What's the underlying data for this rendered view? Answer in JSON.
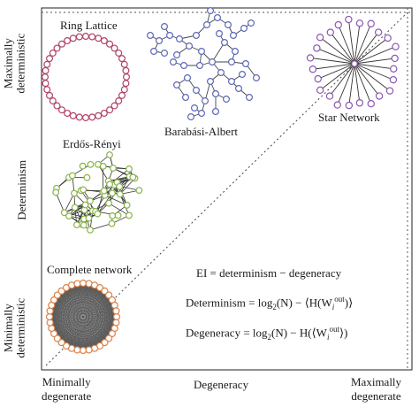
{
  "networks": {
    "ring": {
      "title": "Ring Lattice",
      "node_count": 40,
      "node_color": "#b0426b"
    },
    "barabasi": {
      "title": "Barabási-Albert",
      "node_color": "#5d68b8"
    },
    "star": {
      "title": "Star Network",
      "leaf_count": 24,
      "node_color": "#8a58b0"
    },
    "erdos": {
      "title": "Erdős-Rényi",
      "node_color": "#8ab34a"
    },
    "complete": {
      "title": "Complete network",
      "node_count": 36,
      "node_color": "#d9824a"
    }
  },
  "y_axis": {
    "top": [
      "Maximally",
      "deterministic"
    ],
    "middle": "Determinism",
    "bottom": [
      "Minimally",
      "deterministic"
    ]
  },
  "x_axis": {
    "left": [
      "Minimally",
      "degenerate"
    ],
    "middle": "Degeneracy",
    "right": [
      "Maximally",
      "degenerate"
    ]
  },
  "equations": {
    "ei": "EI = determinism − degeneracy",
    "determinism_lhs": "Determinism = log",
    "determinism_sub": "2",
    "determinism_mid": "(N) − ⟨H(W",
    "determinism_w_sub": "i",
    "determinism_w_sup": "out",
    "determinism_end": ")⟩",
    "degeneracy_lhs": "Degeneracy = log",
    "degeneracy_sub": "2",
    "degeneracy_mid": "(N) − H(⟨W",
    "degeneracy_w_sub": "i",
    "degeneracy_w_sup": "out",
    "degeneracy_end": "⟩)"
  }
}
